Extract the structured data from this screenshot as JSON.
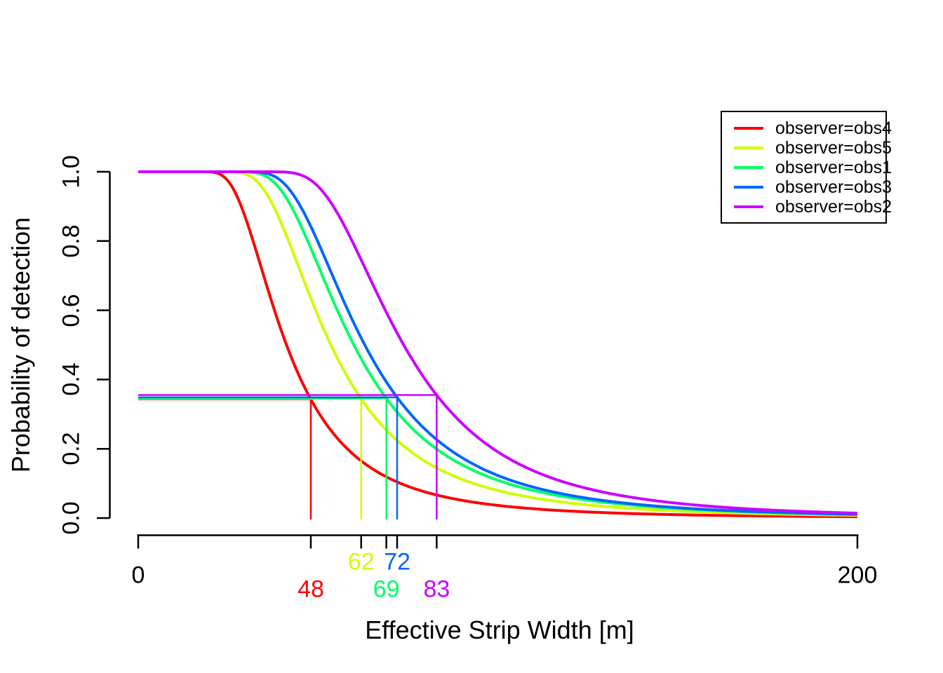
{
  "figure": {
    "background": "#FFFFFF"
  },
  "chart_data": {
    "type": "line",
    "title": "",
    "xlabel": "Effective Strip Width [m]",
    "ylabel": "Probability of detection",
    "xlim": [
      0,
      200
    ],
    "ylim": [
      0,
      1
    ],
    "grid": "off",
    "legend_position": "top-right",
    "x_tick_values": [
      0,
      200
    ],
    "x_tick_labels": [
      "0",
      "200"
    ],
    "y_tick_values": [
      0,
      0.2,
      0.4,
      0.6,
      0.8,
      1.0
    ],
    "y_tick_labels": [
      "0.0",
      "0.2",
      "0.4",
      "0.6",
      "0.8",
      "1.0"
    ],
    "description": "Detection probability curves per observer; colored vertical/horizontal reference lines mark each observer's effective strip width (ESW) on the x-axis and the detection probability at that distance.",
    "series": [
      {
        "label": "observer=obs4",
        "color": "#FF0000",
        "esw": 48,
        "esw_label": "48",
        "esw_label_row": 2,
        "p_at_esw": 0.342,
        "model": {
          "type": "hazard-rate",
          "sigma": 36.9,
          "shape": 3.3
        }
      },
      {
        "label": "observer=obs5",
        "color": "#CCFF00",
        "esw": 62,
        "esw_label": "62",
        "esw_label_row": 1,
        "p_at_esw": 0.344,
        "model": {
          "type": "hazard-rate",
          "sigma": 48.1,
          "shape": 3.4
        }
      },
      {
        "label": "observer=obs1",
        "color": "#00FF66",
        "esw": 69,
        "esw_label": "69",
        "esw_label_row": 2,
        "p_at_esw": 0.345,
        "model": {
          "type": "hazard-rate",
          "sigma": 54.0,
          "shape": 3.5
        }
      },
      {
        "label": "observer=obs3",
        "color": "#0066FF",
        "esw": 72,
        "esw_label": "72",
        "esw_label_row": 1,
        "p_at_esw": 0.348,
        "model": {
          "type": "hazard-rate",
          "sigma": 56.9,
          "shape": 3.6
        }
      },
      {
        "label": "observer=obs2",
        "color": "#CC00FF",
        "esw": 83,
        "esw_label": "83",
        "esw_label_row": 2,
        "p_at_esw": 0.356,
        "model": {
          "type": "hazard-rate",
          "sigma": 67.2,
          "shape": 3.9
        }
      }
    ]
  }
}
